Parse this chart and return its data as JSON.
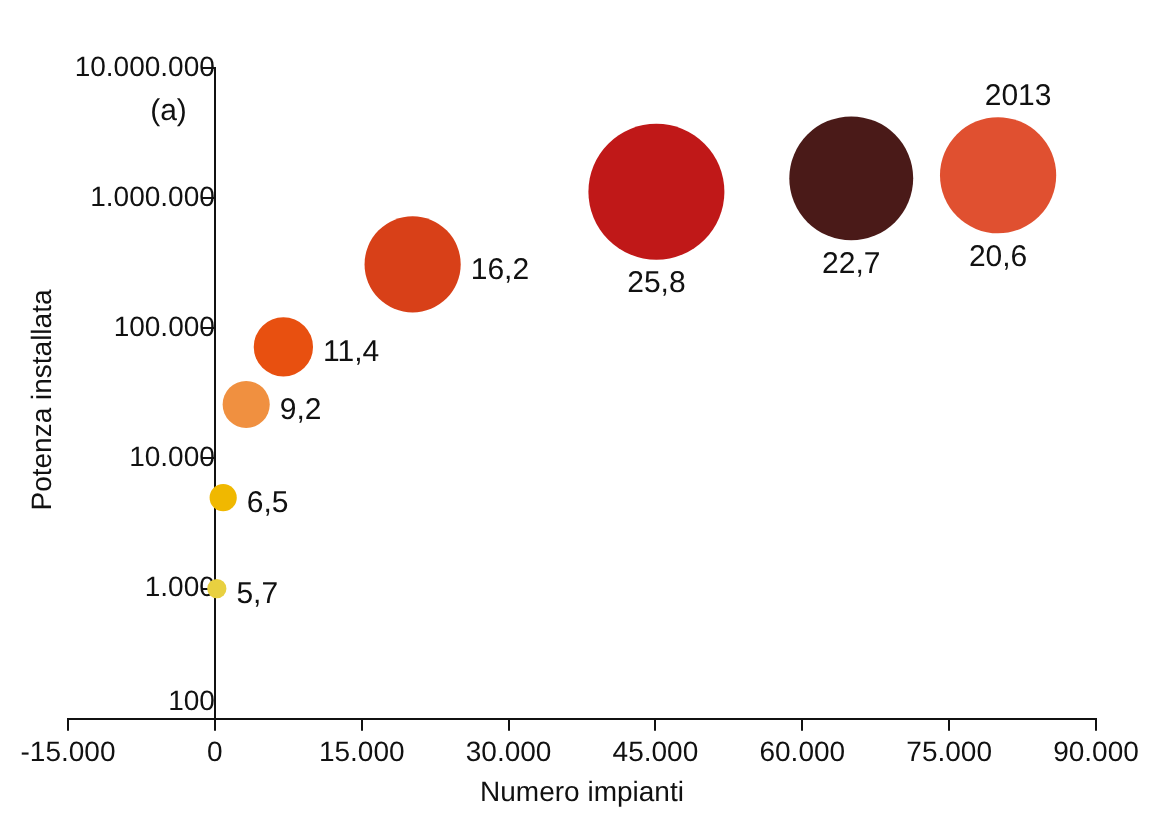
{
  "chart_data": {
    "type": "bubble",
    "xlabel": "Numero impianti",
    "ylabel": "Potenza installata",
    "log": "y",
    "grid": false,
    "legend": false,
    "x": [
      200,
      850,
      3200,
      7000,
      20200,
      45100,
      65000,
      80000
    ],
    "values": [
      1000,
      5000,
      26000,
      72000,
      310000,
      1120000,
      1420000,
      1500000
    ],
    "sizes": [
      0.02,
      0.04,
      0.12,
      0.19,
      0.5,
      1,
      0.83,
      0.73
    ],
    "colors": [
      "#e8d040",
      "#f0b800",
      "#f09040",
      "#e85010",
      "#d84018",
      "#c01818",
      "#4a1a18",
      "#e05030"
    ],
    "xlim": [
      -15000,
      90000
    ],
    "xticks": [
      {
        "value": -15000,
        "label": "-15.000"
      },
      0,
      {
        "value": 15000,
        "label": "15.000"
      },
      {
        "value": 30000,
        "label": "30.000"
      },
      {
        "value": 45000,
        "label": "45.000"
      },
      {
        "value": 60000,
        "label": "60.000"
      },
      {
        "value": 75000,
        "label": "75.000"
      },
      {
        "value": 90000,
        "label": "90.000"
      }
    ],
    "ylim": [
      100,
      10000000
    ],
    "yticks": [
      100,
      {
        "value": 1000,
        "label": "1.000"
      },
      {
        "value": 10000,
        "label": "10.000"
      },
      {
        "value": 100000,
        "label": "100.000"
      },
      {
        "value": 1000000,
        "label": "1.000.000"
      },
      {
        "value": 10000000,
        "label": "10.000.000"
      }
    ],
    "annotations": [
      "(a)",
      {
        "text": "5,7",
        "x": 200,
        "y": 1000
      },
      {
        "text": "6,5",
        "x": 850,
        "y": 5000
      },
      {
        "text": "9,2",
        "x": 3200,
        "y": 26000
      },
      {
        "text": "11,4",
        "x": 7000,
        "y": 72000
      },
      {
        "text": "16,2",
        "x": 20200,
        "y": 310000
      },
      {
        "text": "25,8",
        "x": 45100,
        "y": 1120000
      },
      {
        "text": "22,7",
        "x": 65000,
        "y": 1420000
      },
      {
        "text": "20,6",
        "x": 80000,
        "y": 1500000
      },
      {
        "text": "2013",
        "x": 80000,
        "y": 1500000
      }
    ]
  }
}
